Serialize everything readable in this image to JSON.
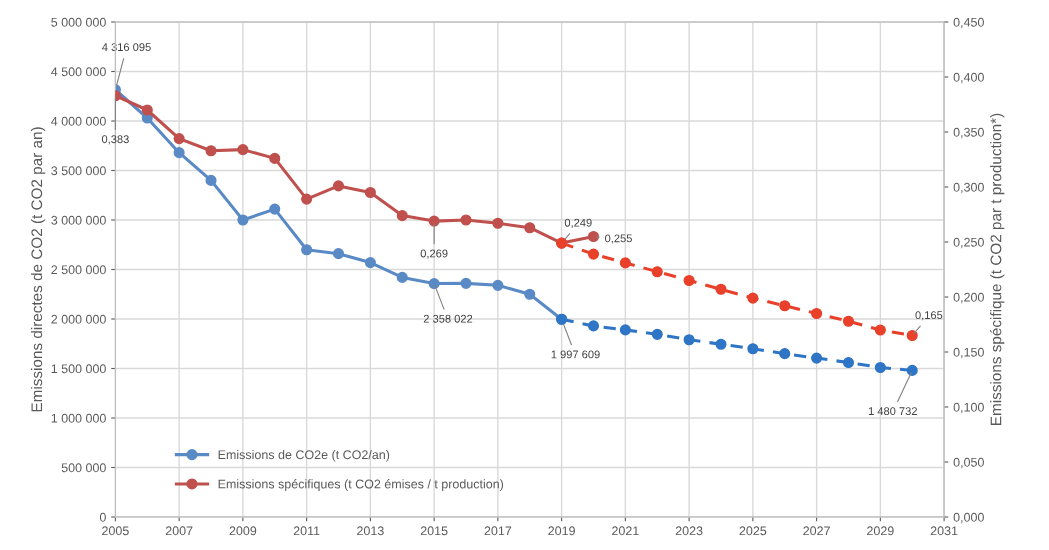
{
  "chart_data": {
    "type": "line",
    "xlim": [
      2005,
      2031
    ],
    "xticks": [
      2005,
      2007,
      2009,
      2011,
      2013,
      2015,
      2017,
      2019,
      2021,
      2023,
      2025,
      2027,
      2029,
      2031
    ],
    "ylim": [
      0,
      5000000
    ],
    "yticks": [
      {
        "value": 0,
        "label": "0"
      },
      {
        "value": 500000,
        "label": "500 000"
      },
      {
        "value": 1000000,
        "label": "1 000 000"
      },
      {
        "value": 1500000,
        "label": "1 500 000"
      },
      {
        "value": 2000000,
        "label": "2 000 000"
      },
      {
        "value": 2500000,
        "label": "2 500 000"
      },
      {
        "value": 3000000,
        "label": "3 000 000"
      },
      {
        "value": 3500000,
        "label": "3 500 000"
      },
      {
        "value": 4000000,
        "label": "4 000 000"
      },
      {
        "value": 4500000,
        "label": "4 500 000"
      },
      {
        "value": 5000000,
        "label": "5 000 000"
      }
    ],
    "y2lim": [
      0,
      0.45
    ],
    "y2ticks": [
      {
        "value": 0,
        "label": "0,000"
      },
      {
        "value": 0.05,
        "label": "0,050"
      },
      {
        "value": 0.1,
        "label": "0,100"
      },
      {
        "value": 0.15,
        "label": "0,150"
      },
      {
        "value": 0.2,
        "label": "0,200"
      },
      {
        "value": 0.25,
        "label": "0,250"
      },
      {
        "value": 0.3,
        "label": "0,300"
      },
      {
        "value": 0.35,
        "label": "0,350"
      },
      {
        "value": 0.4,
        "label": "0,400"
      },
      {
        "value": 0.45,
        "label": "0,450"
      }
    ],
    "ylabel": "Emissions directes de CO2 (t CO2 par an)",
    "y2label": "Emissions spécifique (t CO2 par t production*)",
    "grid": true,
    "legend": "lower left",
    "marker": "circle",
    "series": [
      {
        "name": "Emissions de CO2e (t CO2/an)",
        "color": "#5a8ac6",
        "line_style": "solid",
        "x": [
          2005,
          2006,
          2007,
          2008,
          2009,
          2010,
          2011,
          2012,
          2013,
          2014,
          2015,
          2016,
          2017,
          2018,
          2019
        ],
        "values": [
          4316095,
          4030000,
          3680000,
          3400000,
          3000000,
          3110000,
          2700000,
          2660000,
          2570000,
          2420000,
          2358022,
          2360000,
          2340000,
          2250000,
          1997609
        ],
        "value_labels": [
          "4 316 095",
          null,
          null,
          null,
          null,
          null,
          null,
          null,
          null,
          null,
          "2 358 022",
          null,
          null,
          null,
          "1 997 609"
        ]
      },
      {
        "name": "Emissions spécifiques (t CO2 émises / t production)",
        "color": "#c0504d",
        "line_style": "solid",
        "axis": "y2",
        "x": [
          2005,
          2006,
          2007,
          2008,
          2009,
          2010,
          2011,
          2012,
          2013,
          2014,
          2015,
          2016,
          2017,
          2018,
          2019,
          2020
        ],
        "values": [
          0.383,
          0.37,
          0.344,
          0.333,
          0.334,
          0.326,
          0.289,
          0.301,
          0.295,
          0.274,
          0.269,
          0.27,
          0.267,
          0.263,
          0.249,
          0.255
        ],
        "value_labels": [
          "0,383",
          null,
          null,
          null,
          null,
          null,
          null,
          null,
          null,
          null,
          "0,269",
          null,
          null,
          null,
          "0,249",
          "0,255"
        ]
      },
      {
        "color": "#2e75c6",
        "line_style": "dashed",
        "x": [
          2019,
          2020,
          2021,
          2022,
          2023,
          2024,
          2025,
          2026,
          2027,
          2028,
          2029,
          2030
        ],
        "values": [
          1997609,
          1930000,
          1890000,
          1845000,
          1790000,
          1745000,
          1700000,
          1650000,
          1605000,
          1560000,
          1510000,
          1480732
        ],
        "value_labels": [
          null,
          null,
          null,
          null,
          null,
          null,
          null,
          null,
          null,
          null,
          null,
          "1 480 732"
        ]
      },
      {
        "color": "#e8402a",
        "line_style": "dashed",
        "axis": "y2",
        "x": [
          2019,
          2020,
          2021,
          2022,
          2023,
          2024,
          2025,
          2026,
          2027,
          2028,
          2029,
          2030
        ],
        "values": [
          0.249,
          0.239,
          0.231,
          0.223,
          0.215,
          0.207,
          0.199,
          0.192,
          0.185,
          0.178,
          0.17,
          0.165
        ],
        "value_labels": [
          null,
          null,
          null,
          null,
          null,
          null,
          null,
          null,
          null,
          null,
          null,
          "0,165"
        ]
      }
    ]
  }
}
